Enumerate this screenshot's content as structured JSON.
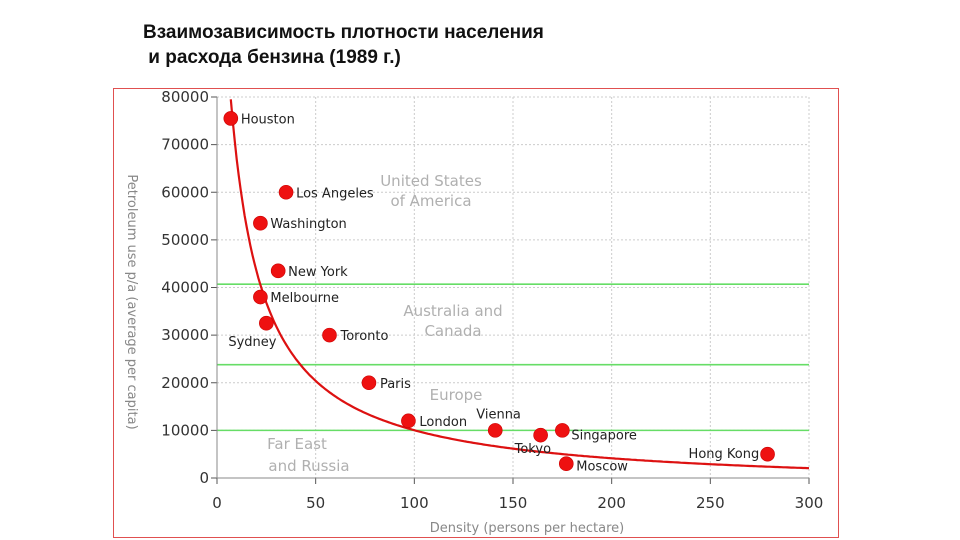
{
  "title": {
    "line1": "Взаимозависимость плотности населения",
    "line2": " и расхода бензина (1989 г.)"
  },
  "colors": {
    "point": "#ee1111",
    "curve": "#dd1111",
    "band_line": "#66dd66",
    "grid": "#cccccc",
    "region_text": "#b0b0b0"
  },
  "chart_data": {
    "type": "scatter",
    "title": "Взаимозависимость плотности населения и расхода бензина (1989 г.)",
    "xlabel": "Density (persons per hectare)",
    "ylabel": "Petroleum use p/a (average per capita)",
    "xlim": [
      0,
      300
    ],
    "ylim": [
      0,
      80000
    ],
    "x_ticks": [
      "0",
      "50",
      "100",
      "150",
      "200",
      "250",
      "300"
    ],
    "y_ticks": [
      "0",
      "10000",
      "20000",
      "30000",
      "40000",
      "50000",
      "60000",
      "70000",
      "80000"
    ],
    "grid": true,
    "points": [
      {
        "label": "Houston",
        "x": 7,
        "y": 75500
      },
      {
        "label": "Los Angeles",
        "x": 35,
        "y": 60000
      },
      {
        "label": "Washington",
        "x": 22,
        "y": 53500
      },
      {
        "label": "New York",
        "x": 31,
        "y": 43500
      },
      {
        "label": "Melbourne",
        "x": 22,
        "y": 38000
      },
      {
        "label": "Sydney",
        "x": 25,
        "y": 32500
      },
      {
        "label": "Toronto",
        "x": 57,
        "y": 30000
      },
      {
        "label": "Paris",
        "x": 77,
        "y": 20000
      },
      {
        "label": "London",
        "x": 97,
        "y": 12000
      },
      {
        "label": "Vienna",
        "x": 141,
        "y": 10000
      },
      {
        "label": "Tokyo",
        "x": 164,
        "y": 9000
      },
      {
        "label": "Singapore",
        "x": 175,
        "y": 10000
      },
      {
        "label": "Moscow",
        "x": 177,
        "y": 3000
      },
      {
        "label": "Hong Kong",
        "x": 279,
        "y": 5000
      }
    ],
    "trend_curve": {
      "type": "reciprocal",
      "description": "fitted decreasing curve"
    },
    "band_lines_y": [
      40700,
      23800,
      10000
    ],
    "regions": [
      {
        "line1": "United States",
        "line2": "of America"
      },
      {
        "line1": "Australia and",
        "line2": "Canada"
      },
      {
        "line1": "Europe",
        "line2": ""
      },
      {
        "line1": "Far East",
        "line2": "and Russia"
      }
    ]
  }
}
